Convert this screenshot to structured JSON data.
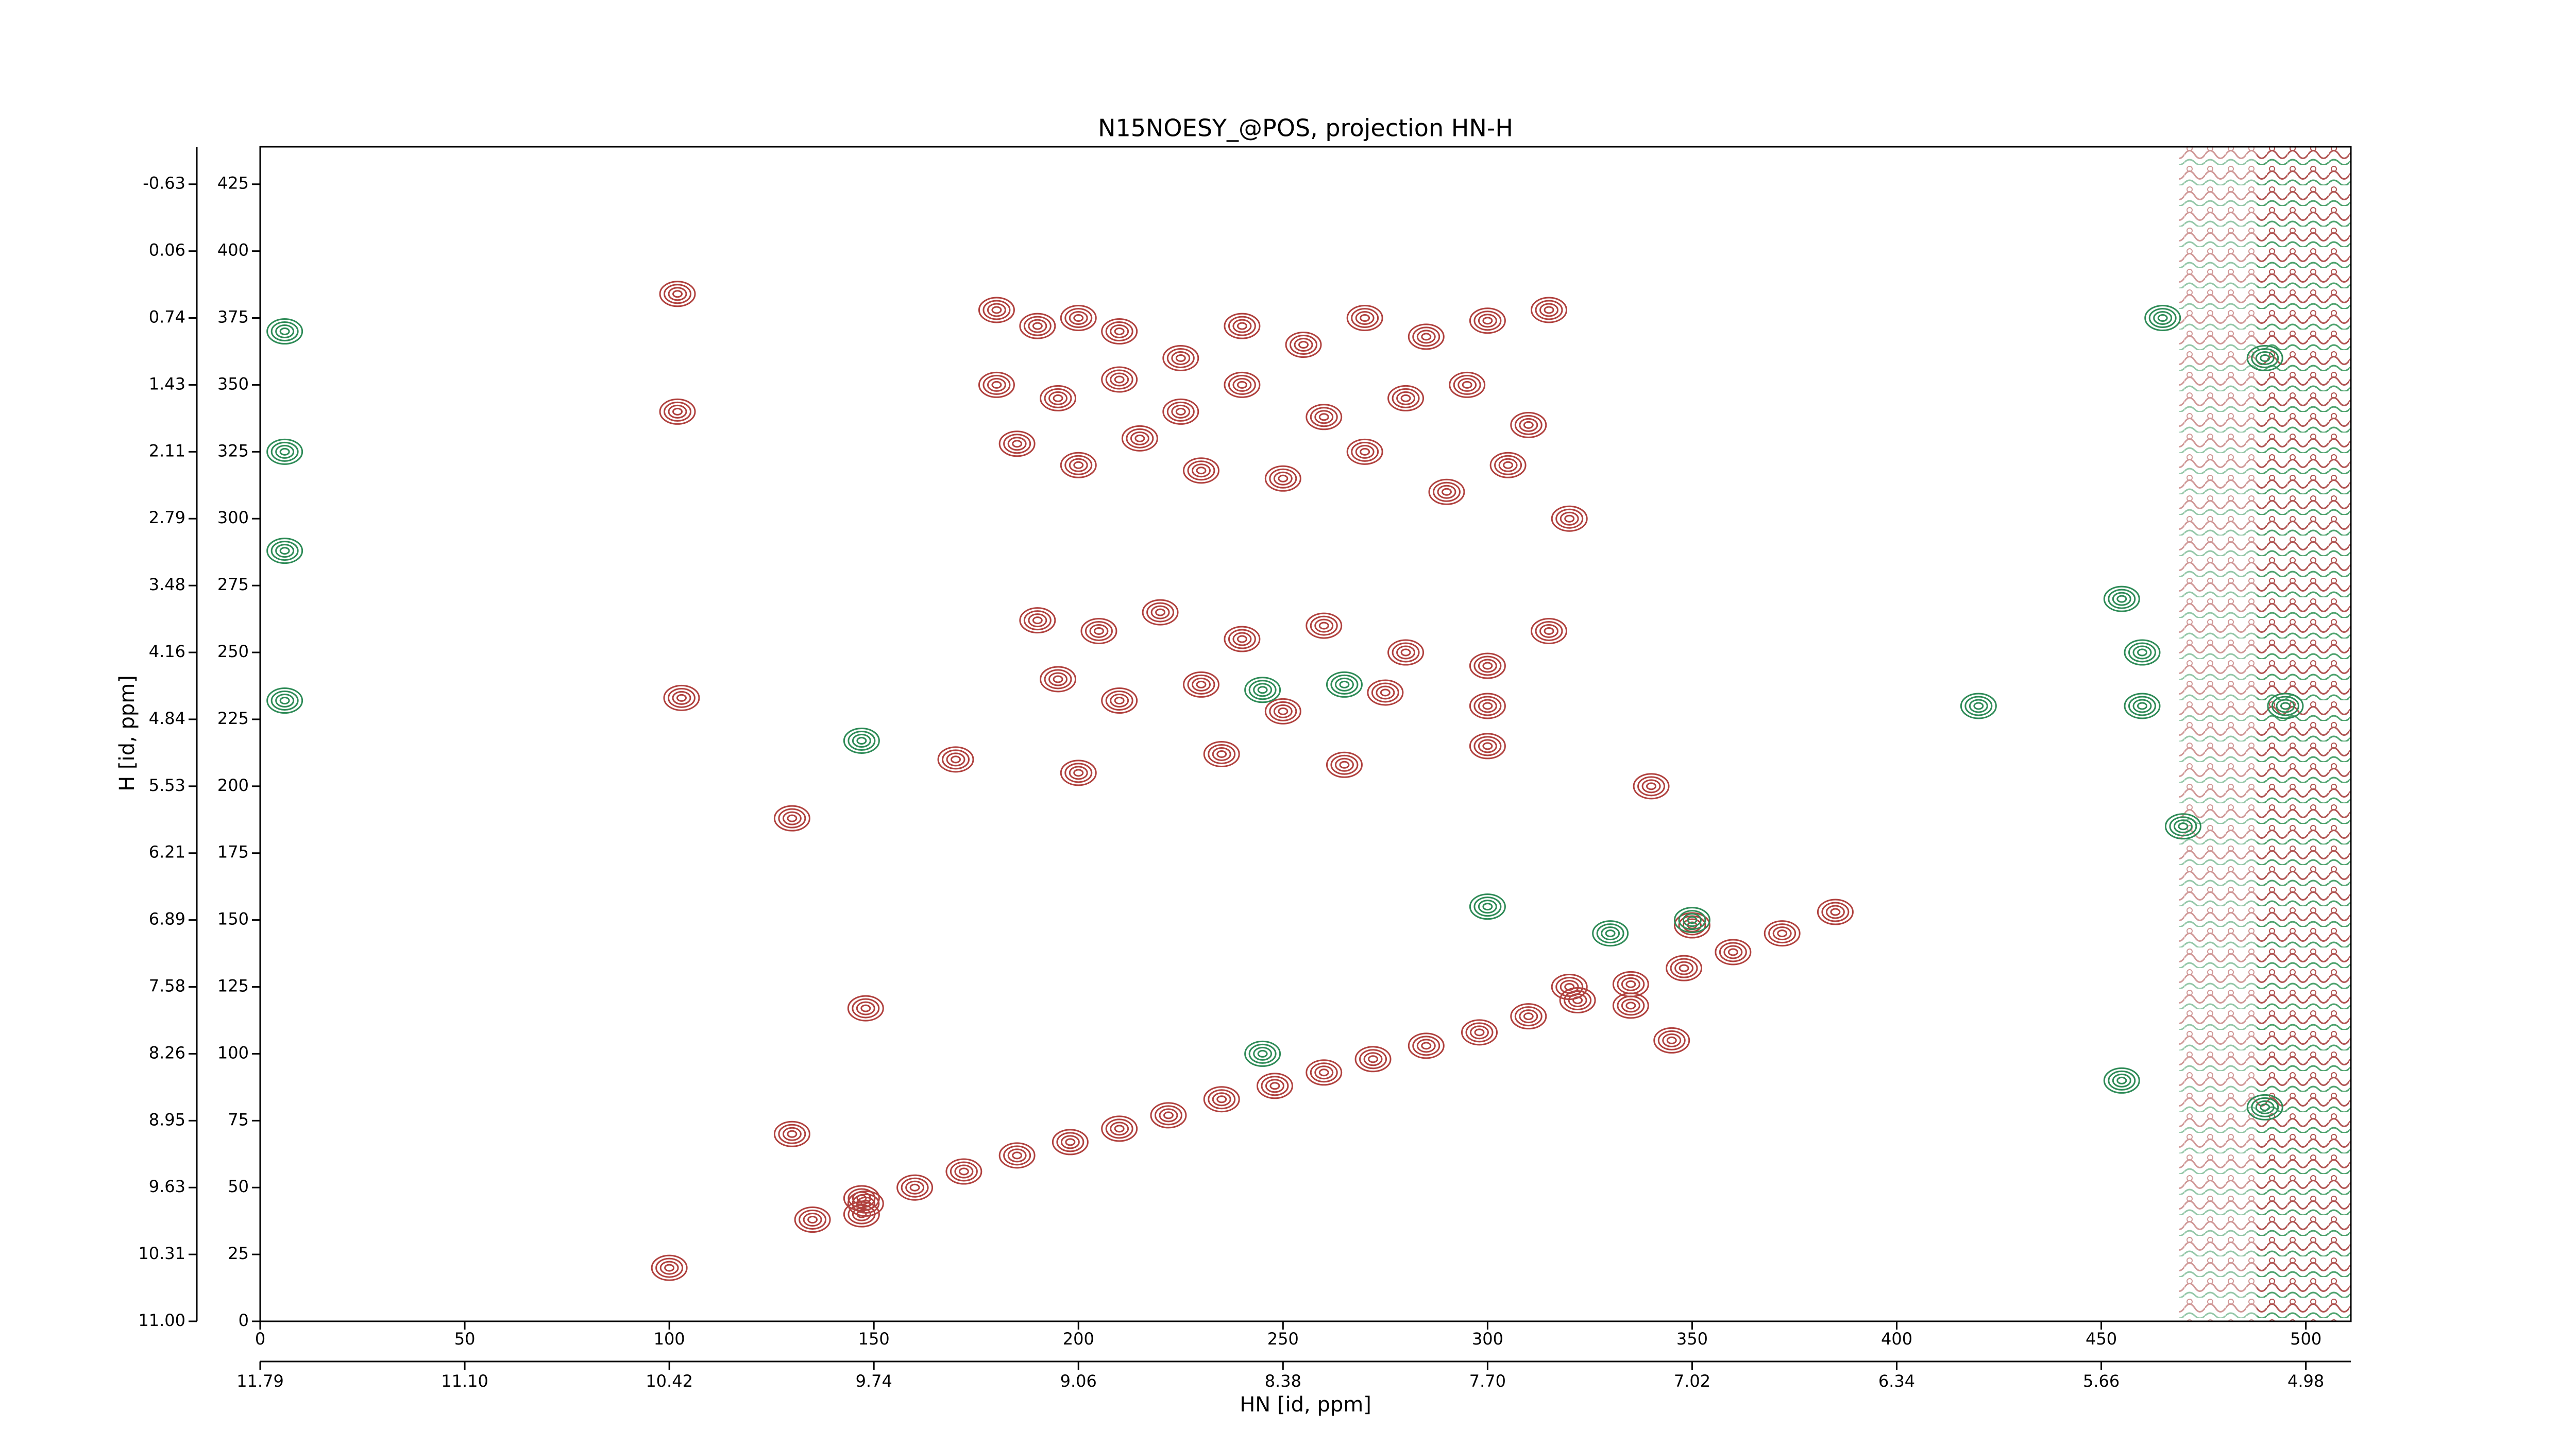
{
  "chart_data": {
    "type": "contour",
    "title": "N15NOESY_@POS, projection HN-H",
    "xlabel": "HN [id, ppm]",
    "ylabel": "H [id, ppm]",
    "xlim": [
      0,
      511
    ],
    "ylim": [
      0,
      439
    ],
    "xticks": [
      0,
      50,
      100,
      150,
      200,
      250,
      300,
      350,
      400,
      450,
      500
    ],
    "yticks": [
      0,
      25,
      50,
      75,
      100,
      125,
      150,
      175,
      200,
      225,
      250,
      275,
      300,
      325,
      350,
      375,
      400,
      425
    ],
    "x2ticks": [
      {
        "value": 0,
        "label": "11.79"
      },
      {
        "value": 50,
        "label": "11.10"
      },
      {
        "value": 100,
        "label": "10.42"
      },
      {
        "value": 150,
        "label": "9.74"
      },
      {
        "value": 200,
        "label": "9.06"
      },
      {
        "value": 250,
        "label": "8.38"
      },
      {
        "value": 300,
        "label": "7.70"
      },
      {
        "value": 350,
        "label": "7.02"
      },
      {
        "value": 400,
        "label": "6.34"
      },
      {
        "value": 450,
        "label": "5.66"
      },
      {
        "value": 500,
        "label": "4.98"
      }
    ],
    "y2ticks": [
      {
        "value": 0,
        "label": "11.00"
      },
      {
        "value": 25,
        "label": "10.31"
      },
      {
        "value": 50,
        "label": "9.63"
      },
      {
        "value": 75,
        "label": "8.95"
      },
      {
        "value": 100,
        "label": "8.26"
      },
      {
        "value": 125,
        "label": "7.58"
      },
      {
        "value": 150,
        "label": "6.89"
      },
      {
        "value": 175,
        "label": "6.21"
      },
      {
        "value": 200,
        "label": "5.53"
      },
      {
        "value": 225,
        "label": "4.84"
      },
      {
        "value": 250,
        "label": "4.16"
      },
      {
        "value": 275,
        "label": "3.48"
      },
      {
        "value": 300,
        "label": "2.79"
      },
      {
        "value": 325,
        "label": "2.11"
      },
      {
        "value": 350,
        "label": "1.43"
      },
      {
        "value": 375,
        "label": "0.74"
      },
      {
        "value": 400,
        "label": "0.06"
      },
      {
        "value": 425,
        "label": "-0.63"
      }
    ],
    "positive": {
      "color": "#b0413e",
      "x": [
        135,
        148,
        160,
        172,
        185,
        198,
        210,
        222,
        235,
        248,
        260,
        272,
        285,
        298,
        310,
        322,
        335,
        348,
        360,
        372,
        385,
        102,
        102,
        103,
        100,
        130,
        130,
        147,
        147,
        148,
        180,
        190,
        200,
        210,
        225,
        240,
        255,
        270,
        285,
        300,
        315,
        180,
        195,
        210,
        225,
        240,
        260,
        280,
        295,
        310,
        185,
        200,
        215,
        230,
        250,
        270,
        290,
        305,
        320,
        190,
        205,
        220,
        240,
        260,
        280,
        300,
        315,
        195,
        210,
        230,
        250,
        275,
        300,
        170,
        200,
        235,
        265,
        300,
        340,
        350,
        320,
        335,
        345
      ],
      "y": [
        38,
        44,
        50,
        56,
        62,
        67,
        72,
        77,
        83,
        88,
        93,
        98,
        103,
        108,
        114,
        120,
        126,
        132,
        138,
        145,
        153,
        384,
        340,
        233,
        20,
        188,
        70,
        40,
        46,
        117,
        378,
        372,
        375,
        370,
        360,
        372,
        365,
        375,
        368,
        374,
        378,
        350,
        345,
        352,
        340,
        350,
        338,
        345,
        350,
        335,
        328,
        320,
        330,
        318,
        315,
        325,
        310,
        320,
        300,
        262,
        258,
        265,
        255,
        260,
        250,
        245,
        258,
        240,
        232,
        238,
        228,
        235,
        230,
        210,
        205,
        212,
        208,
        215,
        200,
        148,
        125,
        118,
        105
      ]
    },
    "negative": {
      "color": "#2e8b57",
      "x": [
        6,
        6,
        6,
        6,
        245,
        300,
        330,
        350,
        465,
        455,
        460,
        470,
        245,
        265,
        147,
        420,
        460,
        495,
        490,
        490,
        455
      ],
      "y": [
        370,
        325,
        288,
        232,
        100,
        155,
        145,
        150,
        375,
        270,
        250,
        185,
        236,
        238,
        217,
        230,
        230,
        230,
        80,
        360,
        90
      ]
    }
  }
}
